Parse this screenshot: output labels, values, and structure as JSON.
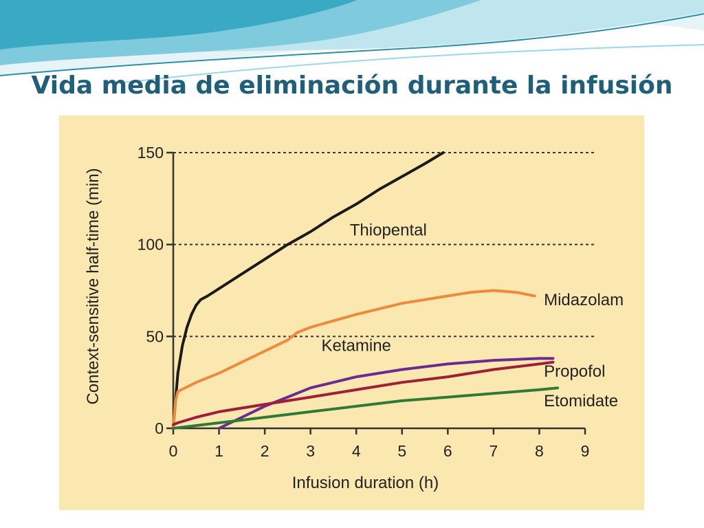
{
  "slide": {
    "title": "Vida media de eliminación durante la infusión",
    "colors": {
      "title": "#1f5f7a",
      "panel": "#fbe8b0",
      "wave_dark": "#3aa9c4",
      "wave_light": "#bfe6ef"
    }
  },
  "chart_data": {
    "type": "line",
    "title": "",
    "xlabel": "Infusion duration (h)",
    "ylabel": "Context-sensitive half-time (min)",
    "xlim": [
      0,
      9
    ],
    "ylim": [
      0,
      150
    ],
    "xticks": [
      "0",
      "1",
      "2",
      "3",
      "4",
      "5",
      "6",
      "7",
      "8",
      "9"
    ],
    "yticks": [
      "0",
      "50",
      "100",
      "150"
    ],
    "grid": "dotted horizontal at 50, 100, 150",
    "legend": "inline labels",
    "series": [
      {
        "name": "Thiopental",
        "color": "#1a1a1a",
        "points": [
          [
            0,
            0
          ],
          [
            0.05,
            15
          ],
          [
            0.1,
            30
          ],
          [
            0.2,
            45
          ],
          [
            0.3,
            55
          ],
          [
            0.4,
            62
          ],
          [
            0.5,
            67
          ],
          [
            0.6,
            70
          ],
          [
            0.75,
            72
          ],
          [
            1,
            76
          ],
          [
            1.5,
            84
          ],
          [
            2,
            92
          ],
          [
            2.5,
            100
          ],
          [
            3,
            107
          ],
          [
            3.5,
            115
          ],
          [
            4,
            122
          ],
          [
            4.5,
            130
          ],
          [
            5,
            137
          ],
          [
            5.5,
            144
          ],
          [
            5.9,
            150
          ]
        ]
      },
      {
        "name": "Midazolam",
        "color": "#ee8a3c",
        "points": [
          [
            0,
            0
          ],
          [
            0.05,
            15
          ],
          [
            0.1,
            20
          ],
          [
            0.5,
            25
          ],
          [
            1,
            30
          ],
          [
            1.5,
            36
          ],
          [
            2,
            42
          ],
          [
            2.5,
            48
          ],
          [
            2.7,
            52
          ],
          [
            3,
            55
          ],
          [
            4,
            62
          ],
          [
            5,
            68
          ],
          [
            6,
            72
          ],
          [
            6.5,
            74
          ],
          [
            7,
            75
          ],
          [
            7.5,
            74
          ],
          [
            7.9,
            72
          ]
        ]
      },
      {
        "name": "Ketamine",
        "color": "#6a2c8e",
        "points": [
          [
            1,
            0
          ],
          [
            1.5,
            6
          ],
          [
            2,
            12
          ],
          [
            2.5,
            17
          ],
          [
            3,
            22
          ],
          [
            3.5,
            25
          ],
          [
            4,
            28
          ],
          [
            5,
            32
          ],
          [
            6,
            35
          ],
          [
            7,
            37
          ],
          [
            8,
            38
          ],
          [
            8.3,
            38
          ]
        ]
      },
      {
        "name": "Propofol",
        "color": "#a01e36",
        "points": [
          [
            0,
            2
          ],
          [
            0.1,
            3
          ],
          [
            0.5,
            6
          ],
          [
            1,
            9
          ],
          [
            2,
            13
          ],
          [
            3,
            17
          ],
          [
            4,
            21
          ],
          [
            5,
            25
          ],
          [
            6,
            28
          ],
          [
            7,
            32
          ],
          [
            8,
            35
          ],
          [
            8.3,
            36
          ]
        ]
      },
      {
        "name": "Etomidate",
        "color": "#2f7a35",
        "points": [
          [
            0,
            0
          ],
          [
            1,
            3
          ],
          [
            2,
            6
          ],
          [
            3,
            9
          ],
          [
            4,
            12
          ],
          [
            5,
            15
          ],
          [
            6,
            17
          ],
          [
            7,
            19
          ],
          [
            8,
            21
          ],
          [
            8.4,
            22
          ]
        ]
      }
    ]
  }
}
